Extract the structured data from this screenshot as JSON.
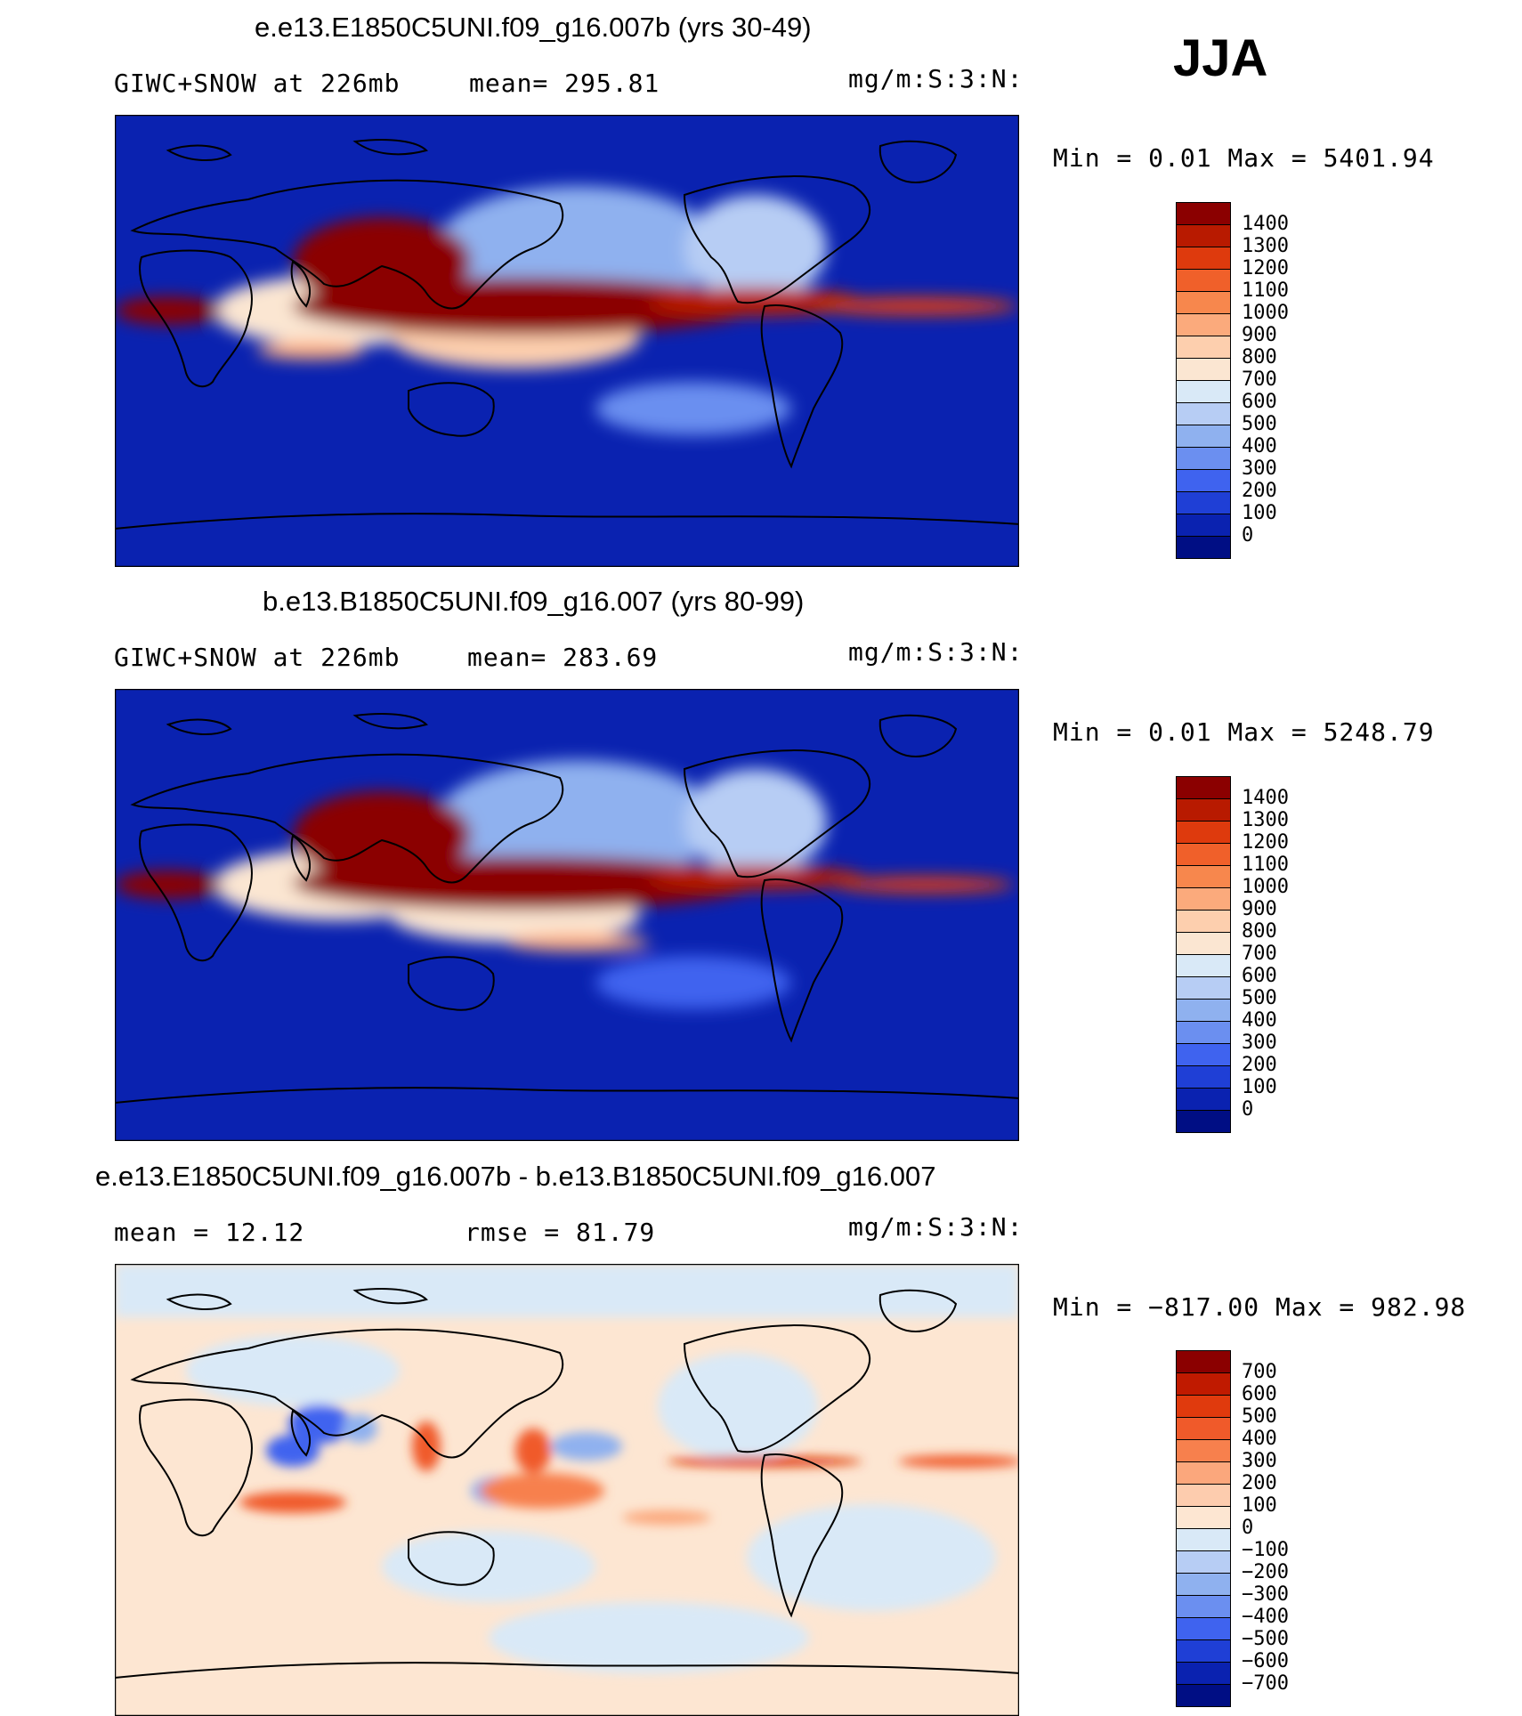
{
  "season": "JJA",
  "panels": [
    {
      "title": "e.e13.E1850C5UNI.f09_g16.007b (yrs 30-49)",
      "left_label": "GIWC+SNOW at 226mb",
      "mid_label": "mean= 295.81",
      "right_label": "mg/m:S:3:N:",
      "minmax": "Min =    0.01  Max =  5401.94",
      "colorbar": {
        "labels": [
          "1400",
          "1300",
          "1200",
          "1100",
          "1000",
          "900",
          "800",
          "700",
          "600",
          "500",
          "400",
          "300",
          "200",
          "100",
          "0"
        ],
        "colors": [
          "#8b0000",
          "#b81a00",
          "#de3a0d",
          "#f0602a",
          "#f7874d",
          "#fbaa7c",
          "#fdcfae",
          "#fbe6d2",
          "#d9e9f7",
          "#b7cdf4",
          "#8fb1ef",
          "#6b8ff0",
          "#3f63ef",
          "#1f3fd6",
          "#0a22b0",
          "#000e84"
        ]
      },
      "chart_data": {
        "type": "heatmap",
        "projection": "global lon-lat map",
        "field": "GIWC+SNOW at 226mb",
        "units": "mg/m:S:3:N:",
        "mean": 295.81,
        "min": 0.01,
        "max": 5401.94,
        "levels": [
          0,
          100,
          200,
          300,
          400,
          500,
          600,
          700,
          800,
          900,
          1000,
          1100,
          1200,
          1300,
          1400
        ],
        "features": [
          "High values (>1400) over South Asian monsoon and tropical W Pacific ITCZ band extending to Central America",
          "Secondary bands over E Pacific and N Atlantic ITCZ",
          "Low values (<100) over subtropics and high latitudes"
        ]
      }
    },
    {
      "title": "b.e13.B1850C5UNI.f09_g16.007 (yrs 80-99)",
      "left_label": "GIWC+SNOW at 226mb",
      "mid_label": "mean= 283.69",
      "right_label": "mg/m:S:3:N:",
      "minmax": "Min =    0.01  Max =  5248.79",
      "colorbar": {
        "labels": [
          "1400",
          "1300",
          "1200",
          "1100",
          "1000",
          "900",
          "800",
          "700",
          "600",
          "500",
          "400",
          "300",
          "200",
          "100",
          "0"
        ],
        "colors": [
          "#8b0000",
          "#b81a00",
          "#de3a0d",
          "#f0602a",
          "#f7874d",
          "#fbaa7c",
          "#fdcfae",
          "#fbe6d2",
          "#d9e9f7",
          "#b7cdf4",
          "#8fb1ef",
          "#6b8ff0",
          "#3f63ef",
          "#1f3fd6",
          "#0a22b0",
          "#000e84"
        ]
      },
      "chart_data": {
        "type": "heatmap",
        "projection": "global lon-lat map",
        "field": "GIWC+SNOW at 226mb",
        "units": "mg/m:S:3:N:",
        "mean": 283.69,
        "min": 0.01,
        "max": 5248.79,
        "levels": [
          0,
          100,
          200,
          300,
          400,
          500,
          600,
          700,
          800,
          900,
          1000,
          1100,
          1200,
          1300,
          1400
        ],
        "features": [
          "Similar pattern to control with slightly weaker maxima"
        ]
      }
    },
    {
      "title": "e.e13.E1850C5UNI.f09_g16.007b - b.e13.B1850C5UNI.f09_g16.007",
      "left_label": "mean =   12.12",
      "mid_label": "rmse =   81.79",
      "right_label": "mg/m:S:3:N:",
      "minmax": "Min = −817.00  Max =  982.98",
      "colorbar": {
        "labels": [
          "700",
          "600",
          "500",
          "400",
          "300",
          "200",
          "100",
          "0",
          "−100",
          "−200",
          "−300",
          "−400",
          "−500",
          "−600",
          "−700"
        ],
        "colors": [
          "#8b0000",
          "#c01a00",
          "#e03a0d",
          "#f05a2a",
          "#f7804d",
          "#fba77c",
          "#fdccae",
          "#fde6d2",
          "#d9e9f7",
          "#b7cdf4",
          "#8fb1ef",
          "#6b8ff0",
          "#3f63ef",
          "#1f3fd6",
          "#0a22b0",
          "#000e84"
        ]
      },
      "chart_data": {
        "type": "heatmap",
        "projection": "global lon-lat map",
        "field": "difference",
        "units": "mg/m:S:3:N:",
        "mean": 12.12,
        "rmse": 81.79,
        "min": -817.0,
        "max": 982.98,
        "levels": [
          -700,
          -600,
          -500,
          -400,
          -300,
          -200,
          -100,
          0,
          100,
          200,
          300,
          400,
          500,
          600,
          700
        ],
        "features": [
          "Mostly near-zero (±100) differences",
          "Positive anomalies along E Pacific ITCZ and S Indian Ocean",
          "Negative anomalies over Arabian Sea/India"
        ]
      }
    }
  ]
}
